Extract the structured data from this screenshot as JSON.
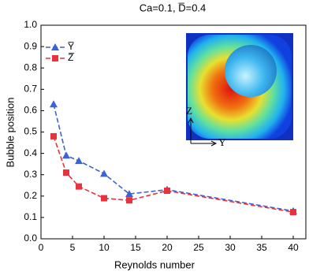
{
  "chart_data": {
    "type": "line",
    "title": "Ca=0.1, D̅=0.4",
    "x_label": "Reynolds number",
    "y_label": "Bubble position",
    "xlim": [
      0,
      42
    ],
    "xticks": [
      0,
      5,
      10,
      15,
      20,
      25,
      30,
      35,
      40
    ],
    "ylim": [
      0,
      1
    ],
    "yticks": [
      {
        "value": 0,
        "label": "0.0"
      },
      0.1,
      0.2,
      0.3,
      0.4,
      0.5,
      0.6,
      0.7,
      0.8,
      0.9,
      {
        "value": 1,
        "label": "1.0"
      }
    ],
    "legend": "upper left",
    "annotations": [
      "Z",
      "Y"
    ],
    "series": [
      {
        "name": "Y̅",
        "color": "#3a63d6",
        "marker": "triangle",
        "x": [
          2,
          4,
          6,
          10,
          14,
          20,
          40
        ],
        "values": [
          0.63,
          0.39,
          0.365,
          0.305,
          0.21,
          0.23,
          0.13
        ]
      },
      {
        "name": "Z̅",
        "color": "#e8323e",
        "marker": "square",
        "x": [
          2,
          4,
          6,
          10,
          14,
          20,
          40
        ],
        "values": [
          0.48,
          0.31,
          0.245,
          0.19,
          0.18,
          0.225,
          0.125
        ]
      }
    ]
  }
}
